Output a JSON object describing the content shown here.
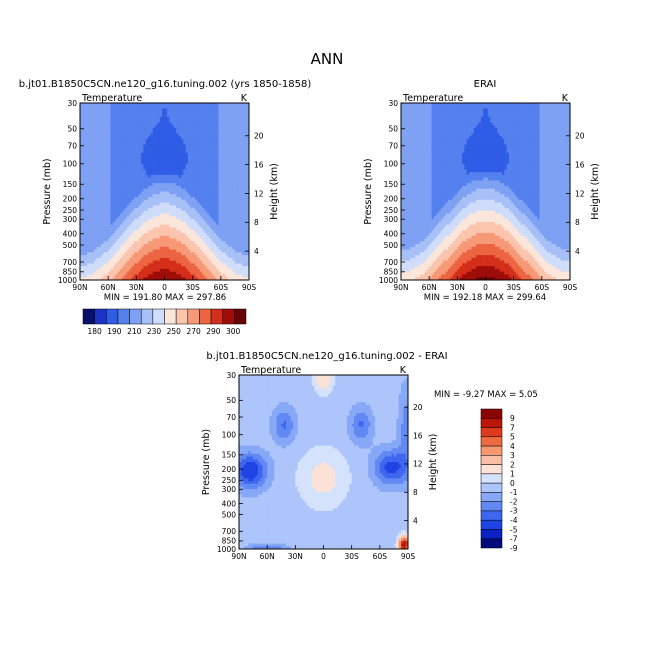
{
  "figure": {
    "title": "ANN"
  },
  "chart_data": [
    {
      "type": "heatmap",
      "subtype": "filled-contour",
      "title": "b.jt01.B1850C5CN.ne120_g16.tuning.002 (yrs 1850-1858)",
      "field_label": "Temperature",
      "units_label": "K",
      "ylabel": "Pressure (mb)",
      "ylabel_right": "Height (km)",
      "x_ticks": [
        "90N",
        "60N",
        "30N",
        "0",
        "30S",
        "60S",
        "90S"
      ],
      "y_ticks": [
        "30",
        "50",
        "70",
        "100",
        "150",
        "200",
        "250",
        "300",
        "400",
        "500",
        "700",
        "850",
        "1000"
      ],
      "y_ticks_right": [
        "20",
        "16",
        "12",
        "8",
        "4"
      ],
      "y_scale": "log",
      "stats_text": "MIN = 191.80   MAX = 297.86",
      "min": 191.8,
      "max": 297.86,
      "levels": [
        180,
        190,
        200,
        210,
        220,
        230,
        240,
        250,
        260,
        270,
        280,
        290,
        300
      ],
      "colorbar_labels": [
        "180",
        "190",
        "210",
        "230",
        "250",
        "270",
        "290",
        "300"
      ],
      "colorbar_position": "bottom"
    },
    {
      "type": "heatmap",
      "subtype": "filled-contour",
      "title": "ERAI",
      "field_label": "Temperature",
      "units_label": "K",
      "ylabel": "Pressure (mb)",
      "ylabel_right": "Height (km)",
      "x_ticks": [
        "90N",
        "60N",
        "30N",
        "0",
        "30S",
        "60S",
        "90S"
      ],
      "y_ticks": [
        "30",
        "50",
        "70",
        "100",
        "150",
        "200",
        "250",
        "300",
        "400",
        "500",
        "700",
        "850",
        "1000"
      ],
      "y_ticks_right": [
        "20",
        "16",
        "12",
        "8",
        "4"
      ],
      "y_scale": "log",
      "stats_text": "MIN = 192.18   MAX = 299.64",
      "min": 192.18,
      "max": 299.64
    },
    {
      "type": "heatmap",
      "subtype": "filled-contour-difference",
      "title": "b.jt01.B1850C5CN.ne120_g16.tuning.002 - ERAI",
      "field_label": "Temperature",
      "units_label": "K",
      "ylabel": "Pressure (mb)",
      "ylabel_right": "Height (km)",
      "x_ticks": [
        "90N",
        "60N",
        "30N",
        "0",
        "30S",
        "60S",
        "90S"
      ],
      "y_ticks": [
        "30",
        "50",
        "70",
        "100",
        "150",
        "200",
        "250",
        "300",
        "400",
        "500",
        "700",
        "850",
        "1000"
      ],
      "y_ticks_right": [
        "20",
        "16",
        "12",
        "8",
        "4"
      ],
      "y_scale": "log",
      "stats_text": "MIN =  -9.27   MAX =    5.05",
      "min": -9.27,
      "max": 5.05,
      "levels": [
        -9,
        -7,
        -5,
        -4,
        -3,
        -2,
        -1,
        0,
        1,
        2,
        3,
        4,
        5,
        7,
        9
      ],
      "colorbar_labels": [
        "9",
        "7",
        "5",
        "4",
        "3",
        "2",
        "1",
        "0",
        "-1",
        "-2",
        "-3",
        "-4",
        "-5",
        "-7",
        "-9"
      ],
      "colorbar_position": "right"
    }
  ],
  "palettes": {
    "temperature": [
      "#08106b",
      "#1c33c4",
      "#2f5de6",
      "#5581ef",
      "#7ea1f3",
      "#a7c0f7",
      "#cfdcfa",
      "#fbe6dc",
      "#fbc4ad",
      "#f79876",
      "#ec6441",
      "#d42f1a",
      "#9e0d09",
      "#6a0303"
    ],
    "difference": [
      "#000b7a",
      "#0a21c4",
      "#1f44e4",
      "#3e66ee",
      "#6288f3",
      "#86a8f6",
      "#adc5fa",
      "#d4e2fc",
      "#fce1d6",
      "#fbbfa6",
      "#f6976f",
      "#ee6a41",
      "#de3b1c",
      "#b91608",
      "#8c0505"
    ]
  }
}
